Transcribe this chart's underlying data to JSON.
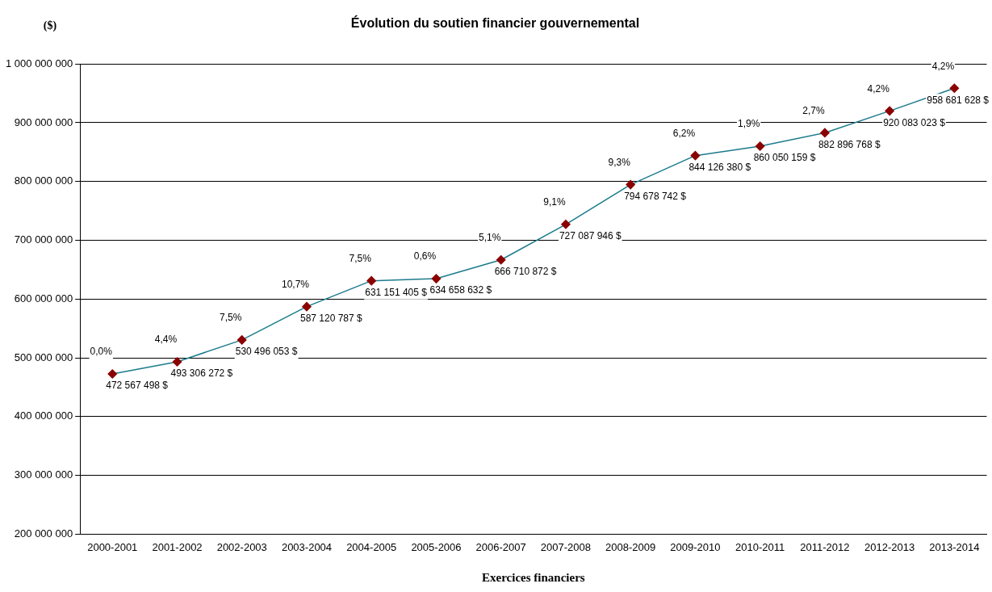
{
  "chart_data": {
    "type": "line",
    "title": "Évolution du soutien financier gouvernemental",
    "ylabel": "($)",
    "xlabel": "Exercices financiers",
    "categories": [
      "2000-2001",
      "2001-2002",
      "2002-2003",
      "2003-2004",
      "2004-2005",
      "2005-2006",
      "2006-2007",
      "2007-2008",
      "2008-2009",
      "2009-2010",
      "2010-2011",
      "2011-2012",
      "2012-2013",
      "2013-2014"
    ],
    "series": [
      {
        "color": "#1b7b8c",
        "colors": [
          "#8b0000",
          "#8b0000",
          "#8b0000",
          "#8b0000",
          "#8b0000",
          "#8b0000",
          "#8b0000",
          "#8b0000",
          "#8b0000",
          "#8b0000",
          "#8b0000",
          "#8b0000",
          "#8b0000",
          "#8b0000"
        ],
        "values": [
          472567498,
          493306272,
          530496053,
          587120787,
          631151405,
          634658632,
          666710872,
          727087946,
          794678742,
          844126380,
          860050159,
          882896768,
          920083023,
          958681628
        ],
        "value_labels": [
          "472 567 498 $",
          "493 306 272 $",
          "530 496 053 $",
          "587 120 787 $",
          "631 151 405 $",
          "634 658 632 $",
          "666 710 872 $",
          "727 087 946 $",
          "794 678 742 $",
          "844 126 380 $",
          "860 050 159 $",
          "882 896 768 $",
          "920 083 023 $",
          "958 681 628 $"
        ]
      }
    ],
    "annotations": [
      {
        "text": "0,0%",
        "x": "2000-2001",
        "y": 472567498
      },
      {
        "text": "4,4%",
        "x": "2001-2002",
        "y": 493306272
      },
      {
        "text": "7,5%",
        "x": "2002-2003",
        "y": 530496053
      },
      {
        "text": "10,7%",
        "x": "2003-2004",
        "y": 587120787
      },
      {
        "text": "7,5%",
        "x": "2004-2005",
        "y": 631151405
      },
      {
        "text": "0,6%",
        "x": "2005-2006",
        "y": 634658632
      },
      {
        "text": "5,1%",
        "x": "2006-2007",
        "y": 666710872
      },
      {
        "text": "9,1%",
        "x": "2007-2008",
        "y": 727087946
      },
      {
        "text": "9,3%",
        "x": "2008-2009",
        "y": 794678742
      },
      {
        "text": "6,2%",
        "x": "2009-2010",
        "y": 844126380
      },
      {
        "text": "1,9%",
        "x": "2010-2011",
        "y": 860050159
      },
      {
        "text": "2,7%",
        "x": "2011-2012",
        "y": 882896768
      },
      {
        "text": "4,2%",
        "x": "2012-2013",
        "y": 920083023
      },
      {
        "text": "4,2%",
        "x": "2013-2014",
        "y": 958681628
      }
    ],
    "ylim": [
      200000000,
      1000000000
    ],
    "yticks": [
      {
        "value": 200000000,
        "label": "200 000 000"
      },
      {
        "value": 300000000,
        "label": "300 000 000"
      },
      {
        "value": 400000000,
        "label": "400 000 000"
      },
      {
        "value": 500000000,
        "label": "500 000 000"
      },
      {
        "value": 600000000,
        "label": "600 000 000"
      },
      {
        "value": 700000000,
        "label": "700 000 000"
      },
      {
        "value": 800000000,
        "label": "800 000 000"
      },
      {
        "value": 900000000,
        "label": "900 000 000"
      },
      {
        "value": 1000000000,
        "label": "1 000 000 000"
      }
    ],
    "grid": "y",
    "legend": false,
    "marker": "diamond",
    "line_style": "solid"
  }
}
